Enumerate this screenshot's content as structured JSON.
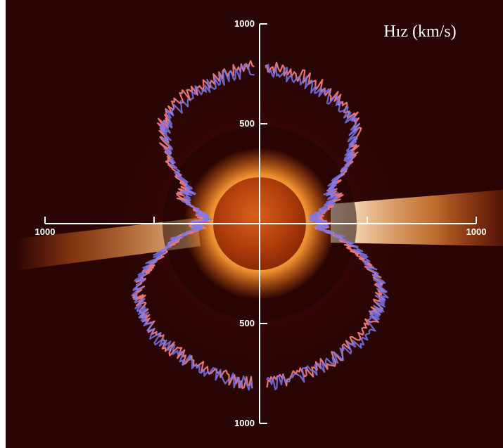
{
  "chart_data": {
    "type": "polar-line",
    "title": "Hız (km/s)",
    "radial_range": [
      0,
      1000
    ],
    "y_ticks_top": [
      "1000",
      "500"
    ],
    "y_ticks_bottom": [
      "500",
      "1000"
    ],
    "x_ticks": {
      "left": "1000",
      "right": "1000"
    },
    "series": [
      {
        "color": "#f07a7a",
        "points": [
          {
            "lat": -88,
            "v": 790
          },
          {
            "lat": -80,
            "v": 780
          },
          {
            "lat": -70,
            "v": 760
          },
          {
            "lat": -60,
            "v": 740
          },
          {
            "lat": -50,
            "v": 720
          },
          {
            "lat": -45,
            "v": 690
          },
          {
            "lat": -40,
            "v": 620
          },
          {
            "lat": -35,
            "v": 560
          },
          {
            "lat": -30,
            "v": 460
          },
          {
            "lat": -25,
            "v": 400
          },
          {
            "lat": -20,
            "v": 420
          },
          {
            "lat": -15,
            "v": 380
          },
          {
            "lat": -10,
            "v": 300
          },
          {
            "lat": -5,
            "v": 280
          },
          {
            "lat": 0,
            "v": 330
          },
          {
            "lat": 5,
            "v": 300
          },
          {
            "lat": 10,
            "v": 420
          },
          {
            "lat": 15,
            "v": 480
          },
          {
            "lat": 20,
            "v": 560
          },
          {
            "lat": 25,
            "v": 650
          },
          {
            "lat": 30,
            "v": 700
          },
          {
            "lat": 35,
            "v": 720
          },
          {
            "lat": 40,
            "v": 740
          },
          {
            "lat": 50,
            "v": 760
          },
          {
            "lat": 60,
            "v": 770
          },
          {
            "lat": 70,
            "v": 780
          },
          {
            "lat": 80,
            "v": 790
          },
          {
            "lat": 88,
            "v": 800
          }
        ]
      },
      {
        "color": "#7878f0",
        "points": [
          {
            "lat": -88,
            "v": 770
          },
          {
            "lat": -80,
            "v": 760
          },
          {
            "lat": -70,
            "v": 740
          },
          {
            "lat": -60,
            "v": 720
          },
          {
            "lat": -50,
            "v": 700
          },
          {
            "lat": -45,
            "v": 670
          },
          {
            "lat": -40,
            "v": 600
          },
          {
            "lat": -35,
            "v": 540
          },
          {
            "lat": -30,
            "v": 440
          },
          {
            "lat": -25,
            "v": 380
          },
          {
            "lat": -20,
            "v": 400
          },
          {
            "lat": -15,
            "v": 360
          },
          {
            "lat": -10,
            "v": 290
          },
          {
            "lat": -5,
            "v": 270
          },
          {
            "lat": 0,
            "v": 320
          },
          {
            "lat": 5,
            "v": 310
          },
          {
            "lat": 10,
            "v": 430
          },
          {
            "lat": 15,
            "v": 500
          },
          {
            "lat": 20,
            "v": 580
          },
          {
            "lat": 25,
            "v": 660
          },
          {
            "lat": 30,
            "v": 710
          },
          {
            "lat": 35,
            "v": 730
          },
          {
            "lat": 40,
            "v": 750
          },
          {
            "lat": 50,
            "v": 770
          },
          {
            "lat": 60,
            "v": 775
          },
          {
            "lat": 70,
            "v": 785
          },
          {
            "lat": 80,
            "v": 795
          },
          {
            "lat": 88,
            "v": 805
          }
        ]
      }
    ]
  },
  "colors": {
    "background": "#2a0505",
    "sun_core": "#c84a10",
    "corona_inner": "#fff4d8",
    "axis": "#ffffff"
  }
}
